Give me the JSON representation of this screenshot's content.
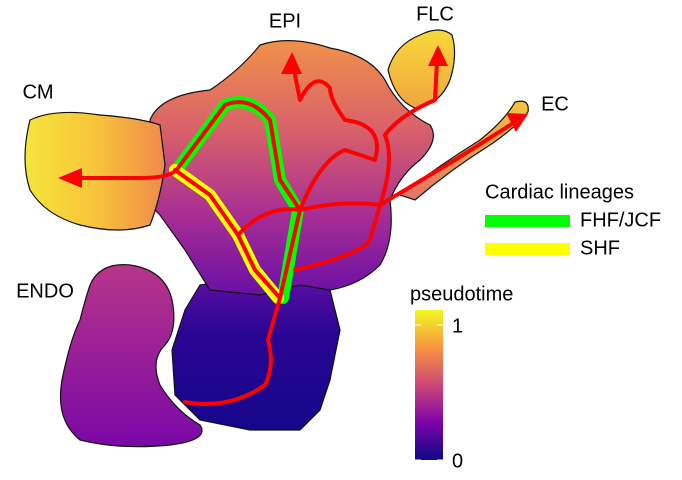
{
  "cluster_labels": [
    "EPI",
    "FLC",
    "CM",
    "EC",
    "ENDO"
  ],
  "legend": {
    "title": "Cardiac lineages",
    "items": [
      {
        "name": "FHF/JCF",
        "color": "#00ff00"
      },
      {
        "name": "SHF",
        "color": "#ffff00"
      }
    ]
  },
  "colorbar": {
    "title": "pseudotime",
    "ticks": [
      0,
      1
    ],
    "lim": [
      0,
      1
    ],
    "colors": [
      "#0d0887",
      "#7e03a8",
      "#cc4778",
      "#f89540",
      "#f0f921"
    ]
  }
}
